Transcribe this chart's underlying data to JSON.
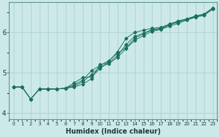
{
  "xlabel": "Humidex (Indice chaleur)",
  "bg_color": "#cce8e8",
  "line_color": "#1a7060",
  "grid_color": "#aad0d0",
  "xlim": [
    -0.5,
    23.5
  ],
  "ylim": [
    3.85,
    6.75
  ],
  "yticks": [
    4,
    5,
    6
  ],
  "line1_x": [
    0,
    1,
    2,
    3,
    4,
    5,
    6,
    7,
    8,
    9,
    10,
    11,
    12,
    13,
    14,
    15,
    16,
    17,
    18,
    19,
    20,
    21,
    22,
    23
  ],
  "line1_y": [
    4.65,
    4.65,
    4.35,
    4.6,
    4.6,
    4.6,
    4.62,
    4.65,
    4.72,
    4.85,
    5.2,
    5.25,
    5.42,
    5.7,
    5.9,
    5.97,
    6.05,
    6.08,
    6.18,
    6.25,
    6.32,
    6.38,
    6.43,
    6.6
  ],
  "line2_x": [
    0,
    1,
    2,
    3,
    4,
    5,
    6,
    7,
    8,
    9,
    10,
    11,
    12,
    13,
    14,
    15,
    16,
    17,
    18,
    19,
    20,
    21,
    22,
    23
  ],
  "line2_y": [
    4.65,
    4.65,
    4.35,
    4.6,
    4.6,
    4.6,
    4.62,
    4.67,
    4.78,
    4.95,
    5.15,
    5.22,
    5.38,
    5.6,
    5.8,
    5.92,
    6.02,
    6.07,
    6.15,
    6.22,
    6.3,
    6.37,
    6.42,
    6.57
  ],
  "line3_x": [
    0,
    1,
    2,
    3,
    4,
    5,
    6,
    7,
    8,
    9,
    10,
    11,
    12,
    13,
    14,
    15,
    16,
    17,
    18,
    19,
    20,
    21,
    22,
    23
  ],
  "line3_y": [
    4.65,
    4.65,
    4.35,
    4.6,
    4.6,
    4.6,
    4.62,
    4.7,
    4.82,
    5.05,
    5.18,
    5.3,
    5.48,
    5.62,
    5.85,
    5.97,
    6.07,
    6.1,
    6.2,
    6.27,
    6.33,
    6.4,
    6.45,
    6.58
  ],
  "line4_x": [
    0,
    1,
    2,
    3,
    4,
    5,
    6,
    7,
    8,
    9,
    10,
    11,
    12,
    13,
    14,
    15,
    16,
    17,
    18,
    19,
    20,
    21,
    22,
    23
  ],
  "line4_y": [
    4.65,
    4.65,
    4.35,
    4.6,
    4.6,
    4.6,
    4.62,
    4.75,
    4.88,
    4.9,
    5.1,
    5.28,
    5.52,
    5.85,
    6.0,
    6.05,
    6.1,
    6.12,
    6.2,
    6.28,
    6.33,
    6.4,
    6.45,
    6.6
  ]
}
